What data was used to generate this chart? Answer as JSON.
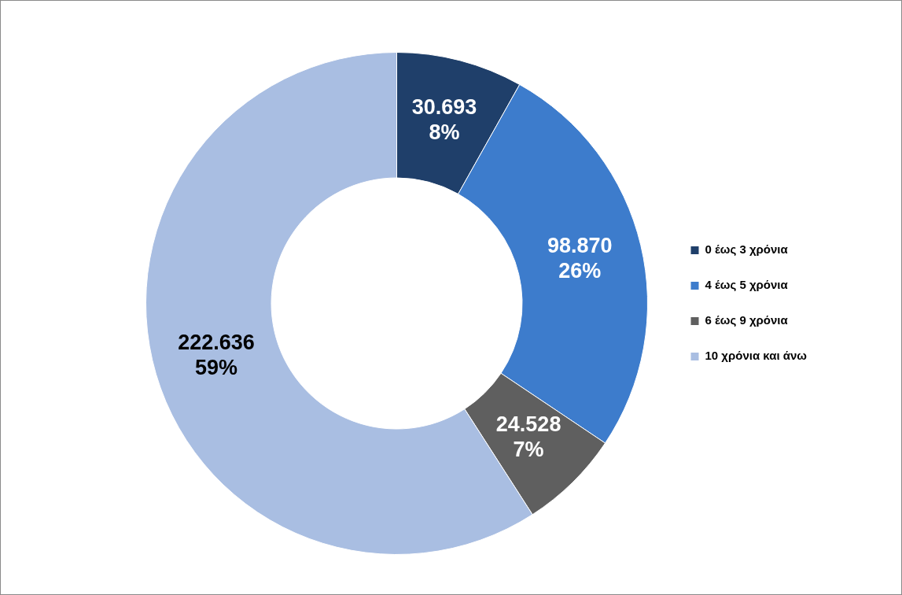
{
  "chart_data": {
    "type": "donut",
    "categories": [
      "0 έως 3 χρόνια",
      "4 έως 5 χρόνια",
      "6 έως 9 χρόνια",
      "10 χρόνια και άνω"
    ],
    "values": [
      30693,
      98870,
      24528,
      222636
    ],
    "colors": [
      "#1f3f6a",
      "#3d7ccc",
      "#5f5f5f",
      "#a9bee2"
    ],
    "value_labels": [
      "30.693\n8%",
      "98.870\n26%",
      "24.528\n7%",
      "222.636\n59%"
    ],
    "legend": "right"
  }
}
